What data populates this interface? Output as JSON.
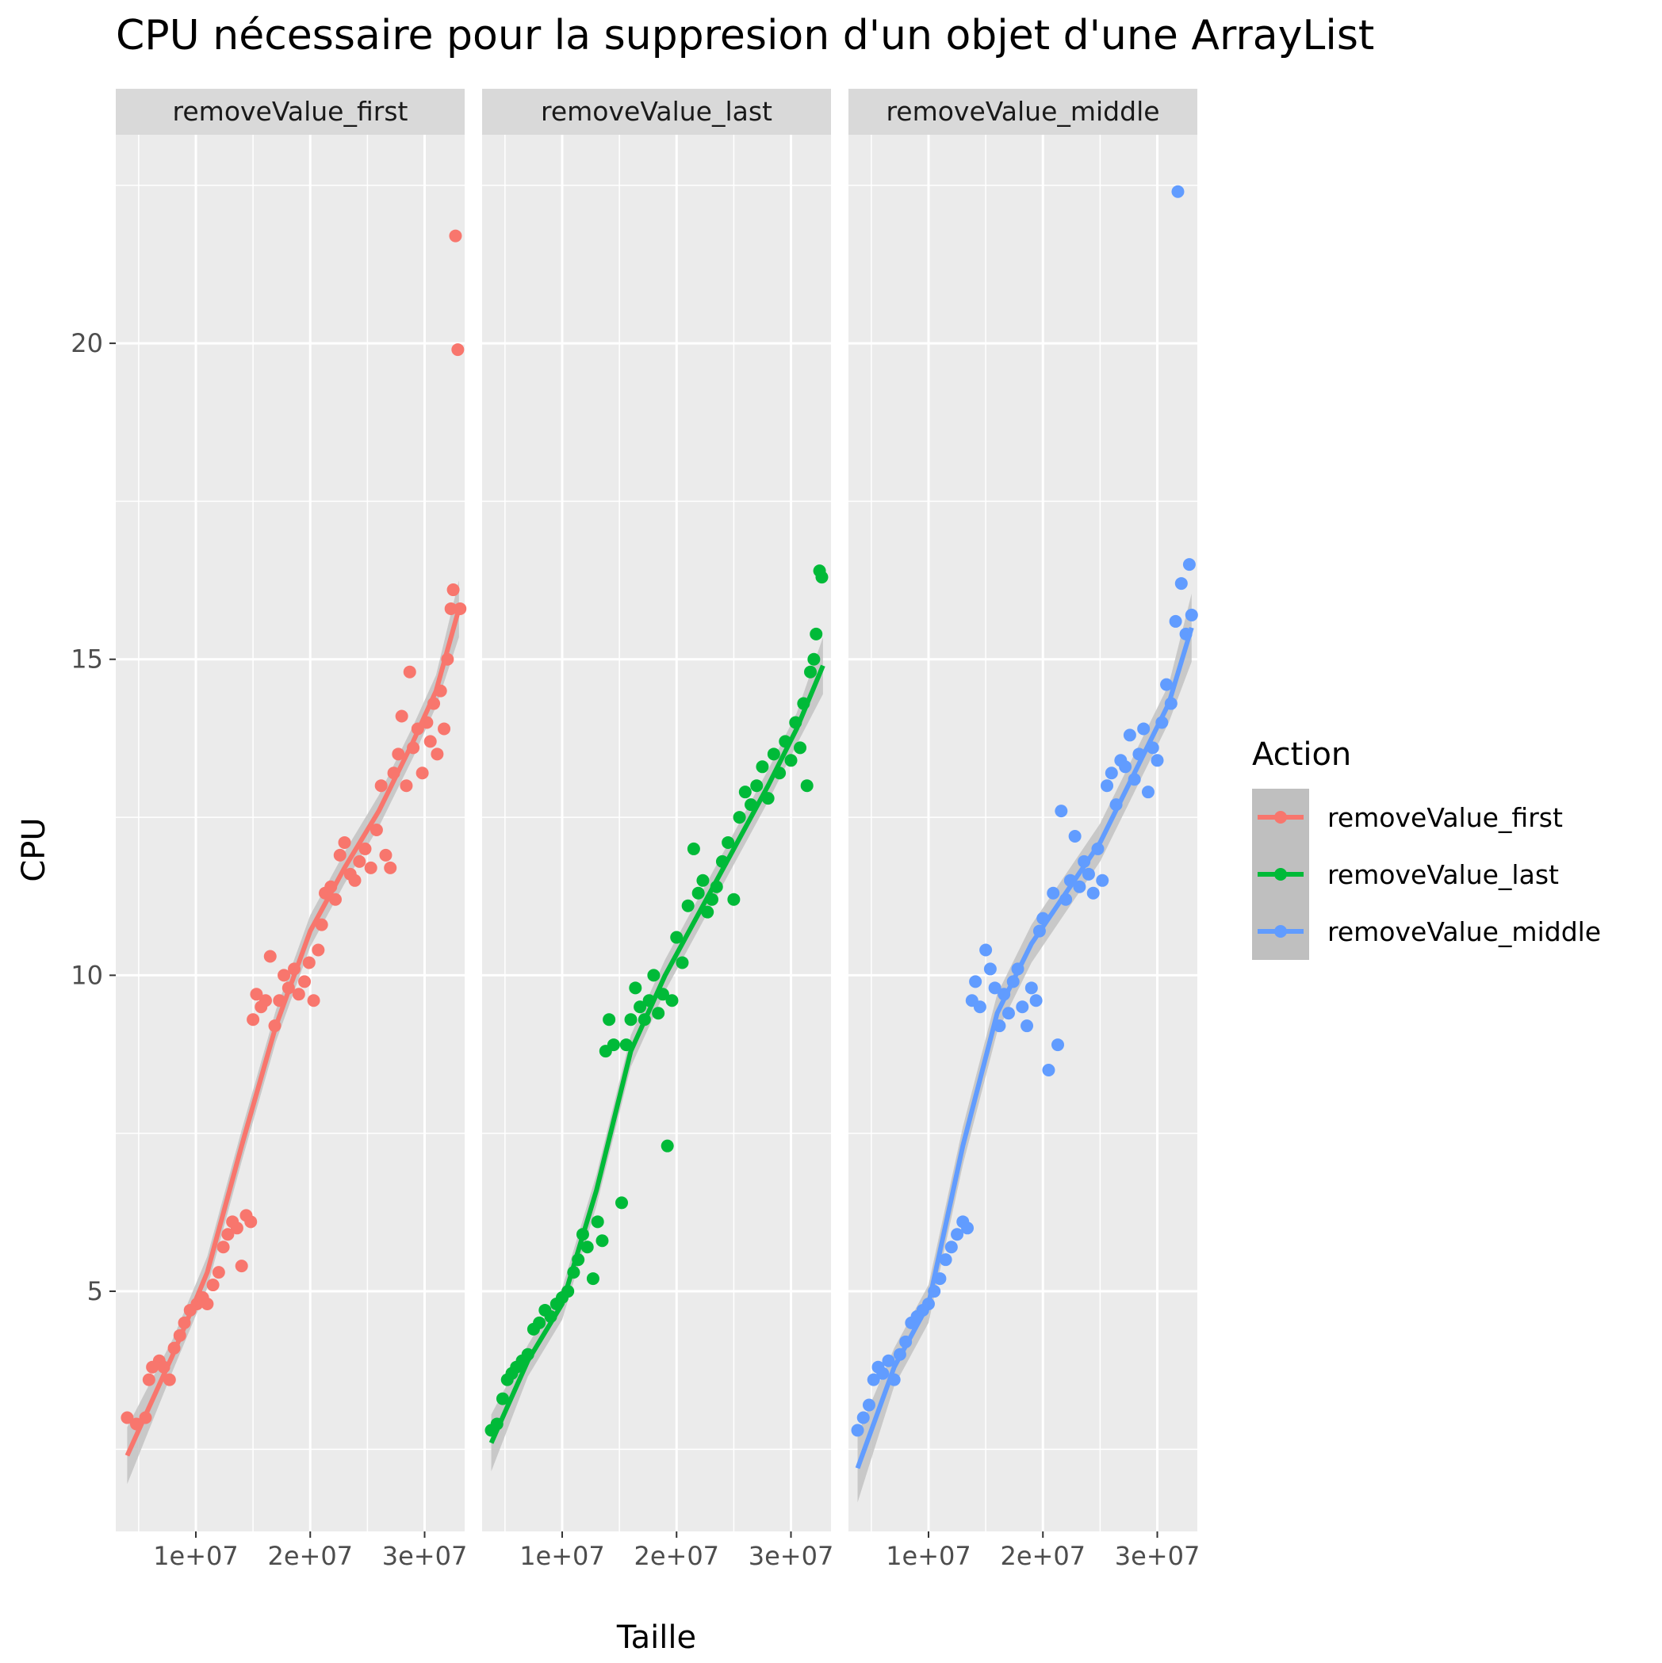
{
  "chart_data": {
    "type": "scatter",
    "title": "CPU nécessaire pour la suppresion d'un objet d'une ArrayList",
    "xlabel": "Taille",
    "ylabel": "CPU",
    "facet_labels": [
      "removeValue_first",
      "removeValue_last",
      "removeValue_middle"
    ],
    "xlim": [
      3000000,
      33500000
    ],
    "ylim": [
      1.2,
      23.3
    ],
    "x_ticks": [
      10000000,
      20000000,
      30000000
    ],
    "x_tick_labels": [
      "1e+07",
      "2e+07",
      "3e+07"
    ],
    "y_ticks": [
      5,
      10,
      15,
      20
    ],
    "y_tick_labels": [
      "5",
      "10",
      "15",
      "20"
    ],
    "legend": {
      "title": "Action",
      "position": "right",
      "entries": [
        "removeValue_first",
        "removeValue_last",
        "removeValue_middle"
      ]
    },
    "colors": {
      "removeValue_first": "#F8766D",
      "removeValue_last": "#00BA38",
      "removeValue_middle": "#619CFF",
      "panel_background": "#EBEBEB",
      "strip_background": "#D9D9D9",
      "grid": "#FFFFFF",
      "ribbon": "#BFBFBF"
    },
    "grid": true,
    "series": [
      {
        "name": "removeValue_first",
        "points": [
          [
            4000000,
            3.0
          ],
          [
            4800000,
            2.9
          ],
          [
            5600000,
            3.0
          ],
          [
            5900000,
            3.6
          ],
          [
            6200000,
            3.8
          ],
          [
            6800000,
            3.9
          ],
          [
            7200000,
            3.8
          ],
          [
            7700000,
            3.6
          ],
          [
            8100000,
            4.1
          ],
          [
            8600000,
            4.3
          ],
          [
            9000000,
            4.5
          ],
          [
            9500000,
            4.7
          ],
          [
            10100000,
            4.8
          ],
          [
            10600000,
            4.9
          ],
          [
            11000000,
            4.8
          ],
          [
            11500000,
            5.1
          ],
          [
            12000000,
            5.3
          ],
          [
            12400000,
            5.7
          ],
          [
            12800000,
            5.9
          ],
          [
            13200000,
            6.1
          ],
          [
            13600000,
            6.0
          ],
          [
            14000000,
            5.4
          ],
          [
            14400000,
            6.2
          ],
          [
            14800000,
            6.1
          ],
          [
            15000000,
            9.3
          ],
          [
            15300000,
            9.7
          ],
          [
            15700000,
            9.5
          ],
          [
            16100000,
            9.6
          ],
          [
            16500000,
            10.3
          ],
          [
            16900000,
            9.2
          ],
          [
            17300000,
            9.6
          ],
          [
            17700000,
            10.0
          ],
          [
            18100000,
            9.8
          ],
          [
            18600000,
            10.1
          ],
          [
            19000000,
            9.7
          ],
          [
            19500000,
            9.9
          ],
          [
            19900000,
            10.2
          ],
          [
            20300000,
            9.6
          ],
          [
            20700000,
            10.4
          ],
          [
            21000000,
            10.8
          ],
          [
            21300000,
            11.3
          ],
          [
            21800000,
            11.4
          ],
          [
            22200000,
            11.2
          ],
          [
            22600000,
            11.9
          ],
          [
            23000000,
            12.1
          ],
          [
            23500000,
            11.6
          ],
          [
            23900000,
            11.5
          ],
          [
            24300000,
            11.8
          ],
          [
            24800000,
            12.0
          ],
          [
            25300000,
            11.7
          ],
          [
            25800000,
            12.3
          ],
          [
            26200000,
            13.0
          ],
          [
            26600000,
            11.9
          ],
          [
            27000000,
            11.7
          ],
          [
            27300000,
            13.2
          ],
          [
            27700000,
            13.5
          ],
          [
            28000000,
            14.1
          ],
          [
            28400000,
            13.0
          ],
          [
            28700000,
            14.8
          ],
          [
            29000000,
            13.6
          ],
          [
            29400000,
            13.9
          ],
          [
            29800000,
            13.2
          ],
          [
            30200000,
            14.0
          ],
          [
            30500000,
            13.7
          ],
          [
            30800000,
            14.3
          ],
          [
            31100000,
            13.5
          ],
          [
            31400000,
            14.5
          ],
          [
            31700000,
            13.9
          ],
          [
            32000000,
            15.0
          ],
          [
            32300000,
            15.8
          ],
          [
            32500000,
            16.1
          ],
          [
            32700000,
            21.7
          ],
          [
            32900000,
            19.9
          ],
          [
            33100000,
            15.8
          ]
        ]
      },
      {
        "name": "removeValue_last",
        "points": [
          [
            3800000,
            2.8
          ],
          [
            4300000,
            2.9
          ],
          [
            4800000,
            3.3
          ],
          [
            5200000,
            3.6
          ],
          [
            5600000,
            3.7
          ],
          [
            6000000,
            3.8
          ],
          [
            6500000,
            3.9
          ],
          [
            7000000,
            4.0
          ],
          [
            7500000,
            4.4
          ],
          [
            8000000,
            4.5
          ],
          [
            8500000,
            4.7
          ],
          [
            9000000,
            4.6
          ],
          [
            9500000,
            4.8
          ],
          [
            10000000,
            4.9
          ],
          [
            10500000,
            5.0
          ],
          [
            11000000,
            5.3
          ],
          [
            11400000,
            5.5
          ],
          [
            11800000,
            5.9
          ],
          [
            12200000,
            5.7
          ],
          [
            12700000,
            5.2
          ],
          [
            13100000,
            6.1
          ],
          [
            13500000,
            5.8
          ],
          [
            13800000,
            8.8
          ],
          [
            14100000,
            9.3
          ],
          [
            14500000,
            8.9
          ],
          [
            15200000,
            6.4
          ],
          [
            15600000,
            8.9
          ],
          [
            16000000,
            9.3
          ],
          [
            16400000,
            9.8
          ],
          [
            16800000,
            9.5
          ],
          [
            17200000,
            9.3
          ],
          [
            17600000,
            9.6
          ],
          [
            18000000,
            10.0
          ],
          [
            18400000,
            9.4
          ],
          [
            18800000,
            9.7
          ],
          [
            19200000,
            7.3
          ],
          [
            19600000,
            9.6
          ],
          [
            20000000,
            10.6
          ],
          [
            20500000,
            10.2
          ],
          [
            21000000,
            11.1
          ],
          [
            21500000,
            12.0
          ],
          [
            21900000,
            11.3
          ],
          [
            22300000,
            11.5
          ],
          [
            22700000,
            11.0
          ],
          [
            23100000,
            11.2
          ],
          [
            23500000,
            11.4
          ],
          [
            24000000,
            11.8
          ],
          [
            24500000,
            12.1
          ],
          [
            25000000,
            11.2
          ],
          [
            25500000,
            12.5
          ],
          [
            26000000,
            12.9
          ],
          [
            26500000,
            12.7
          ],
          [
            27000000,
            13.0
          ],
          [
            27500000,
            13.3
          ],
          [
            28000000,
            12.8
          ],
          [
            28500000,
            13.5
          ],
          [
            29000000,
            13.2
          ],
          [
            29500000,
            13.7
          ],
          [
            30000000,
            13.4
          ],
          [
            30400000,
            14.0
          ],
          [
            30800000,
            13.6
          ],
          [
            31100000,
            14.3
          ],
          [
            31400000,
            13.0
          ],
          [
            31700000,
            14.8
          ],
          [
            32000000,
            15.0
          ],
          [
            32200000,
            15.4
          ],
          [
            32500000,
            16.4
          ],
          [
            32700000,
            16.3
          ]
        ]
      },
      {
        "name": "removeValue_middle",
        "points": [
          [
            3800000,
            2.8
          ],
          [
            4300000,
            3.0
          ],
          [
            4800000,
            3.2
          ],
          [
            5200000,
            3.6
          ],
          [
            5600000,
            3.8
          ],
          [
            6000000,
            3.7
          ],
          [
            6500000,
            3.9
          ],
          [
            7000000,
            3.6
          ],
          [
            7500000,
            4.0
          ],
          [
            8000000,
            4.2
          ],
          [
            8500000,
            4.5
          ],
          [
            9000000,
            4.6
          ],
          [
            9500000,
            4.7
          ],
          [
            10000000,
            4.8
          ],
          [
            10500000,
            5.0
          ],
          [
            11000000,
            5.2
          ],
          [
            11500000,
            5.5
          ],
          [
            12000000,
            5.7
          ],
          [
            12500000,
            5.9
          ],
          [
            13000000,
            6.1
          ],
          [
            13400000,
            6.0
          ],
          [
            13800000,
            9.6
          ],
          [
            14100000,
            9.9
          ],
          [
            14500000,
            9.5
          ],
          [
            15000000,
            10.4
          ],
          [
            15400000,
            10.1
          ],
          [
            15800000,
            9.8
          ],
          [
            16200000,
            9.2
          ],
          [
            16600000,
            9.7
          ],
          [
            17000000,
            9.4
          ],
          [
            17400000,
            9.9
          ],
          [
            17800000,
            10.1
          ],
          [
            18200000,
            9.5
          ],
          [
            18600000,
            9.2
          ],
          [
            19000000,
            9.8
          ],
          [
            19400000,
            9.6
          ],
          [
            19700000,
            10.7
          ],
          [
            20000000,
            10.9
          ],
          [
            20500000,
            8.5
          ],
          [
            20900000,
            11.3
          ],
          [
            21300000,
            8.9
          ],
          [
            21600000,
            12.6
          ],
          [
            22000000,
            11.2
          ],
          [
            22400000,
            11.5
          ],
          [
            22800000,
            12.2
          ],
          [
            23200000,
            11.4
          ],
          [
            23600000,
            11.8
          ],
          [
            24000000,
            11.6
          ],
          [
            24400000,
            11.3
          ],
          [
            24800000,
            12.0
          ],
          [
            25200000,
            11.5
          ],
          [
            25600000,
            13.0
          ],
          [
            26000000,
            13.2
          ],
          [
            26400000,
            12.7
          ],
          [
            26800000,
            13.4
          ],
          [
            27200000,
            13.3
          ],
          [
            27600000,
            13.8
          ],
          [
            28000000,
            13.1
          ],
          [
            28400000,
            13.5
          ],
          [
            28800000,
            13.9
          ],
          [
            29200000,
            12.9
          ],
          [
            29600000,
            13.6
          ],
          [
            30000000,
            13.4
          ],
          [
            30400000,
            14.0
          ],
          [
            30800000,
            14.6
          ],
          [
            31200000,
            14.3
          ],
          [
            31600000,
            15.6
          ],
          [
            31800000,
            22.4
          ],
          [
            32100000,
            16.2
          ],
          [
            32500000,
            15.4
          ],
          [
            32800000,
            16.5
          ],
          [
            33000000,
            15.7
          ]
        ]
      }
    ],
    "smooth_lines": [
      {
        "name": "removeValue_first",
        "points": [
          [
            4000000,
            2.4
          ],
          [
            8000000,
            4.0
          ],
          [
            11000000,
            5.3
          ],
          [
            14000000,
            7.3
          ],
          [
            17000000,
            9.2
          ],
          [
            20000000,
            10.7
          ],
          [
            23000000,
            11.7
          ],
          [
            26000000,
            12.6
          ],
          [
            29000000,
            13.7
          ],
          [
            31000000,
            14.5
          ],
          [
            33000000,
            15.8
          ]
        ],
        "band": 0.25
      },
      {
        "name": "removeValue_last",
        "points": [
          [
            3800000,
            2.6
          ],
          [
            7000000,
            3.9
          ],
          [
            10000000,
            4.8
          ],
          [
            13000000,
            6.6
          ],
          [
            16000000,
            8.8
          ],
          [
            19000000,
            10.0
          ],
          [
            22000000,
            11.0
          ],
          [
            25000000,
            12.0
          ],
          [
            28000000,
            13.0
          ],
          [
            30500000,
            13.9
          ],
          [
            32800000,
            14.9
          ]
        ],
        "band": 0.25
      },
      {
        "name": "removeValue_middle",
        "points": [
          [
            3800000,
            2.2
          ],
          [
            7000000,
            3.8
          ],
          [
            10000000,
            4.8
          ],
          [
            13000000,
            7.3
          ],
          [
            16000000,
            9.4
          ],
          [
            19000000,
            10.5
          ],
          [
            22000000,
            11.3
          ],
          [
            25000000,
            12.1
          ],
          [
            28000000,
            13.2
          ],
          [
            31000000,
            14.3
          ],
          [
            33000000,
            15.5
          ]
        ],
        "band": 0.3
      }
    ]
  }
}
